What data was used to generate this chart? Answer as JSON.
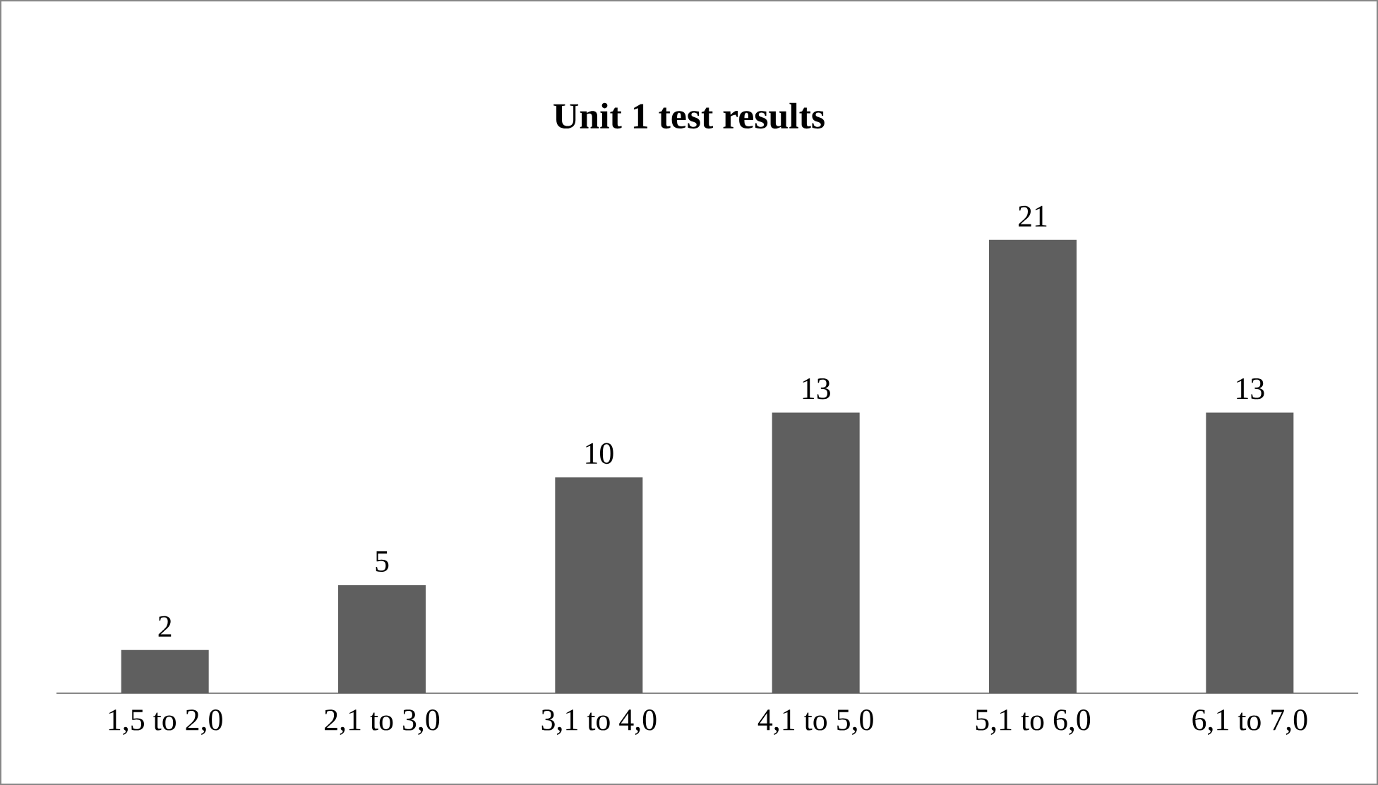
{
  "chart_data": {
    "type": "bar",
    "title": "Unit 1 test results",
    "categories": [
      "1,5 to 2,0",
      "2,1 to 3,0",
      "3,1 to 4,0",
      "4,1 to 5,0",
      "5,1 to 6,0",
      "6,1 to 7,0"
    ],
    "values": [
      2,
      5,
      10,
      13,
      21,
      13
    ],
    "color": "#5f5f5f",
    "data_labels": true
  }
}
